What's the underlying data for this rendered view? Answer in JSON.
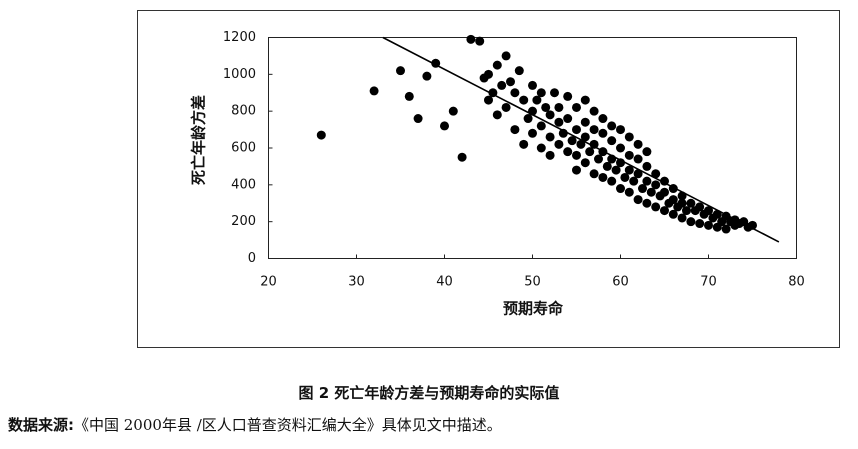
{
  "chart_data": {
    "type": "scatter",
    "x_label": "预期寿命",
    "y_label": "死亡年龄方差",
    "xlim": [
      20,
      80
    ],
    "xticks": [
      20,
      30,
      40,
      50,
      60,
      70,
      80
    ],
    "ylim": [
      0,
      1200
    ],
    "yticks": [
      0,
      200,
      400,
      600,
      800,
      1000,
      1200
    ],
    "color": "#000000",
    "x": [
      26,
      32,
      35,
      36,
      37,
      38,
      39,
      40,
      41,
      42,
      43,
      44,
      44.5,
      45,
      45,
      45.5,
      46,
      46,
      46.5,
      47,
      47,
      47.5,
      48,
      48,
      48.5,
      49,
      49,
      49.5,
      50,
      50,
      50,
      50.5,
      51,
      51,
      51,
      51.5,
      52,
      52,
      52,
      52.5,
      53,
      53,
      53,
      53.5,
      54,
      54,
      54,
      54.5,
      55,
      55,
      55,
      55,
      55.5,
      56,
      56,
      56,
      56,
      56.5,
      57,
      57,
      57,
      57,
      57.5,
      58,
      58,
      58,
      58,
      58.5,
      59,
      59,
      59,
      59,
      59.5,
      60,
      60,
      60,
      60,
      60.5,
      61,
      61,
      61,
      61,
      61.5,
      62,
      62,
      62,
      62,
      62.5,
      63,
      63,
      63,
      63,
      63.5,
      64,
      64,
      64,
      64.5,
      65,
      65,
      65,
      65.5,
      66,
      66,
      66,
      66.5,
      67,
      67,
      67,
      67.5,
      68,
      68,
      68.5,
      69,
      69,
      69.5,
      70,
      70,
      70.5,
      71,
      71,
      71.5,
      72,
      72,
      72.5,
      73,
      73,
      73.5,
      74,
      74.5,
      75
    ],
    "values": [
      670,
      910,
      1020,
      880,
      760,
      990,
      1060,
      720,
      800,
      550,
      1190,
      1180,
      980,
      1000,
      860,
      900,
      1050,
      780,
      940,
      1100,
      820,
      960,
      900,
      700,
      1020,
      860,
      620,
      760,
      940,
      800,
      680,
      860,
      720,
      900,
      600,
      820,
      780,
      660,
      560,
      900,
      740,
      620,
      820,
      680,
      760,
      580,
      880,
      640,
      700,
      560,
      820,
      480,
      620,
      740,
      520,
      660,
      860,
      580,
      700,
      460,
      620,
      800,
      540,
      680,
      440,
      580,
      760,
      500,
      640,
      420,
      540,
      720,
      480,
      600,
      380,
      520,
      700,
      440,
      560,
      360,
      480,
      660,
      420,
      540,
      320,
      460,
      620,
      380,
      500,
      300,
      420,
      580,
      360,
      460,
      280,
      400,
      340,
      420,
      260,
      360,
      300,
      380,
      240,
      320,
      280,
      340,
      220,
      300,
      260,
      300,
      200,
      260,
      280,
      190,
      240,
      260,
      180,
      220,
      240,
      170,
      200,
      230,
      160,
      200,
      210,
      180,
      190,
      200,
      170,
      180
    ],
    "trend_line": {
      "x": [
        33,
        78
      ],
      "y": [
        1200,
        90
      ]
    }
  },
  "figure": {
    "caption": "图 2   死亡年龄方差与预期寿命的实际值",
    "source_label": "数据来源:",
    "source_text": "《中国 2000年县 /区人口普查资料汇编大全》具体见文中描述。"
  }
}
